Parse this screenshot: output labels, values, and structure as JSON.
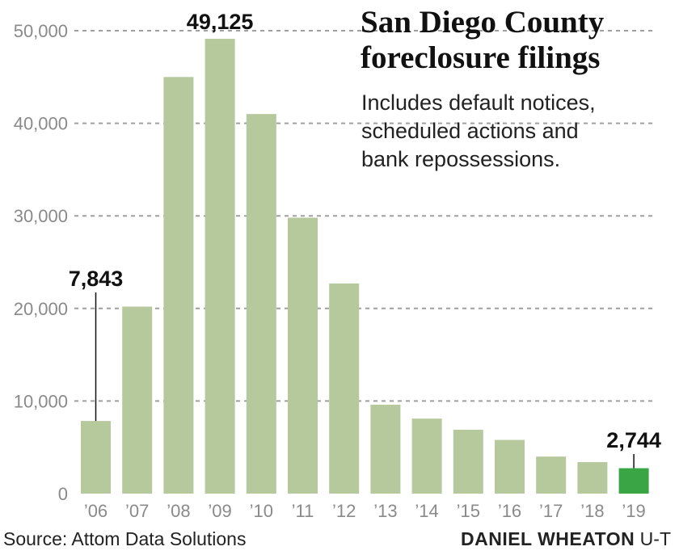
{
  "chart_data": {
    "type": "bar",
    "title_lines": [
      "San Diego County",
      "foreclosure filings"
    ],
    "subtitle_lines": [
      "Includes default notices,",
      "scheduled actions and",
      "bank repossessions."
    ],
    "categories": [
      "’06",
      "’07",
      "’08",
      "’09",
      "’10",
      "’11",
      "’12",
      "’13",
      "’14",
      "’15",
      "’16",
      "’17",
      "’18",
      "’19"
    ],
    "values": [
      7843,
      20200,
      45000,
      49125,
      41000,
      29800,
      22700,
      9600,
      8100,
      6900,
      5800,
      4000,
      3400,
      2744
    ],
    "ylim": [
      0,
      50000
    ],
    "yticks": [
      0,
      10000,
      20000,
      30000,
      40000,
      50000
    ],
    "ytick_labels": [
      "0",
      "10,000",
      "20,000",
      "30,000",
      "40,000",
      "50,000"
    ],
    "grid": "horizontal-dashed",
    "annotations": [
      {
        "category": "’06",
        "label": "7,843"
      },
      {
        "category": "’09",
        "label": "49,125"
      },
      {
        "category": "’19",
        "label": "2,744"
      }
    ],
    "colors": {
      "bar": "#b6c99c",
      "highlight": "#3aa544",
      "grid": "#a0a0a0"
    },
    "highlight_category": "’19"
  },
  "footer": {
    "source": "Source: Attom Data Solutions",
    "credit_name": "DANIEL WHEATON",
    "credit_org": " U-T"
  }
}
